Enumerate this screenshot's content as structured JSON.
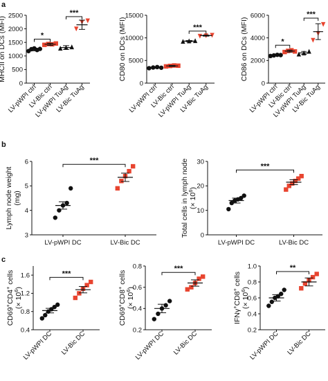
{
  "panel_labels": [
    "a",
    "b",
    "c"
  ],
  "colors": {
    "ctrl": "#111111",
    "bic": "#e8442f",
    "axis": "#111111"
  },
  "chart_data": [
    {
      "id": "a1",
      "panel": "a",
      "type": "scatter",
      "ylabel": "MHCII on DCs (MFI)",
      "categories": [
        "LV-pWPI ctrl",
        "LV-Bic ctrl",
        "LV-pWPI TuAg",
        "LV-Bic TuAg"
      ],
      "ylim": [
        0,
        2500
      ],
      "yticks": [
        0,
        500,
        1000,
        1500,
        2000,
        2500
      ],
      "yticklabels": [
        "0",
        "500",
        "1000",
        "1500",
        "2000",
        "2500"
      ],
      "groups": [
        {
          "color": "black",
          "marker": "circle",
          "points": [
            1180,
            1250,
            1280,
            1220,
            1260
          ],
          "mean": 1240,
          "sem": 50
        },
        {
          "color": "red",
          "marker": "square",
          "points": [
            1410,
            1440,
            1430,
            1460
          ],
          "mean": 1430,
          "sem": 40
        },
        {
          "color": "black",
          "marker": "triangle",
          "points": [
            1280,
            1310,
            1330
          ],
          "mean": 1310,
          "sem": 70
        },
        {
          "color": "red",
          "marker": "triangle-down",
          "points": [
            2000,
            2250,
            2300
          ],
          "mean": 2150,
          "sem": 170
        }
      ],
      "brackets": [
        {
          "from": 0,
          "to": 1,
          "y": 1620,
          "label": "*"
        },
        {
          "from": 2,
          "to": 3,
          "y": 2450,
          "label": "***"
        }
      ]
    },
    {
      "id": "a2",
      "panel": "a",
      "type": "scatter",
      "ylabel": "CD80 on DCs (MFI)",
      "categories": [
        "LV-pWPI ctrl",
        "LV-Bic ctrl",
        "LV-pWPI TuAg",
        "LV-Bic TuAg"
      ],
      "ylim": [
        0,
        15000
      ],
      "yticks": [
        0,
        5000,
        10000,
        15000
      ],
      "yticklabels": [
        "0",
        "5000",
        "10000",
        "15000"
      ],
      "groups": [
        {
          "color": "black",
          "marker": "circle",
          "points": [
            3300,
            3450,
            3550,
            3400
          ],
          "mean": 3420,
          "sem": 150
        },
        {
          "color": "red",
          "marker": "square",
          "points": [
            3700,
            3800,
            3900,
            3850
          ],
          "mean": 3800,
          "sem": 120
        },
        {
          "color": "black",
          "marker": "triangle",
          "points": [
            9200,
            9300,
            9350
          ],
          "mean": 9280,
          "sem": 130
        },
        {
          "color": "red",
          "marker": "triangle-down",
          "points": [
            10400,
            10500,
            10600
          ],
          "mean": 10500,
          "sem": 120
        }
      ],
      "brackets": [
        {
          "from": 2,
          "to": 3,
          "y": 11500,
          "label": "***"
        }
      ]
    },
    {
      "id": "a3",
      "panel": "a",
      "type": "scatter",
      "ylabel": "CD86 on DCs (MFI)",
      "categories": [
        "LV-pWPI ctrl",
        "LV-Bic ctrl",
        "LV-pWPI TuAg",
        "LV-Bic TuAg"
      ],
      "ylim": [
        0,
        6000
      ],
      "yticks": [
        0,
        2000,
        4000,
        6000
      ],
      "yticklabels": [
        "0",
        "2000",
        "4000",
        "6000"
      ],
      "groups": [
        {
          "color": "black",
          "marker": "circle",
          "points": [
            2400,
            2450,
            2500,
            2480
          ],
          "mean": 2460,
          "sem": 60
        },
        {
          "color": "red",
          "marker": "square",
          "points": [
            2750,
            2850,
            2900,
            2800
          ],
          "mean": 2830,
          "sem": 90
        },
        {
          "color": "black",
          "marker": "triangle",
          "points": [
            2550,
            2650,
            2800
          ],
          "mean": 2670,
          "sem": 130
        },
        {
          "color": "red",
          "marker": "triangle-down",
          "points": [
            3800,
            4400,
            5200
          ],
          "mean": 4550,
          "sem": 700
        }
      ],
      "brackets": [
        {
          "from": 0,
          "to": 1,
          "y": 3350,
          "label": "*"
        },
        {
          "from": 2,
          "to": 3,
          "y": 5750,
          "label": "***"
        }
      ]
    },
    {
      "id": "b1",
      "panel": "b",
      "type": "scatter",
      "ylabel": "Lymph node weight",
      "yunit": "(mg)",
      "categories": [
        "LV-pWPI DC",
        "LV-Bic DC"
      ],
      "ylim": [
        3,
        6
      ],
      "yticks": [
        3,
        4,
        5,
        6
      ],
      "yticklabels": [
        "3",
        "4",
        "5",
        "6"
      ],
      "groups": [
        {
          "color": "black",
          "marker": "circle",
          "points": [
            3.7,
            4.0,
            4.2,
            4.3,
            4.9
          ],
          "mean": 4.2,
          "sem": 0.15
        },
        {
          "color": "red",
          "marker": "square",
          "points": [
            4.9,
            5.2,
            5.4,
            5.6,
            5.8
          ],
          "mean": 5.35,
          "sem": 0.17
        }
      ],
      "brackets": [
        {
          "from": 0,
          "to": 1,
          "y": 5.88,
          "label": "***"
        }
      ]
    },
    {
      "id": "b2",
      "panel": "b",
      "type": "scatter",
      "ylabel": "Total cells in lymph node",
      "yunit": "(× 10",
      "yunit_sup": "6",
      "yunit_end": ")",
      "categories": [
        "LV-pWPI DC",
        "LV-Bic DC"
      ],
      "ylim": [
        0,
        30
      ],
      "yticks": [
        0,
        10,
        20,
        30
      ],
      "yticklabels": [
        "0",
        "10",
        "20",
        "30"
      ],
      "groups": [
        {
          "color": "black",
          "marker": "circle",
          "points": [
            10.5,
            13,
            14,
            14.5,
            15,
            16
          ],
          "mean": 14,
          "sem": 1
        },
        {
          "color": "red",
          "marker": "square",
          "points": [
            18.5,
            20,
            21,
            22,
            23,
            24
          ],
          "mean": 21.5,
          "sem": 1
        }
      ],
      "brackets": [
        {
          "from": 0,
          "to": 1,
          "y": 26.5,
          "label": "***"
        }
      ]
    },
    {
      "id": "c1",
      "panel": "c",
      "type": "scatter",
      "ylabel": "CD69",
      "ylabel_sup1": "+",
      "ylabel_mid": "CD4",
      "ylabel_sup2": "+",
      "ylabel_end": " cells",
      "yunit": "(× 10",
      "yunit_sup": "6",
      "yunit_end": ")",
      "categories": [
        "LV-pWPI DC",
        "LV-Bic DC"
      ],
      "ylim": [
        0.4,
        1.8
      ],
      "yticks": [
        0.4,
        0.8,
        1.2,
        1.6
      ],
      "yticklabels": [
        "0.4",
        "0.8",
        "1.2",
        "1.6"
      ],
      "groups": [
        {
          "color": "black",
          "marker": "circle",
          "points": [
            0.65,
            0.72,
            0.8,
            0.85,
            0.9,
            0.95
          ],
          "mean": 0.82,
          "sem": 0.05
        },
        {
          "color": "red",
          "marker": "square",
          "points": [
            1.1,
            1.2,
            1.3,
            1.38,
            1.45
          ],
          "mean": 1.28,
          "sem": 0.07
        }
      ],
      "brackets": [
        {
          "from": 0,
          "to": 1,
          "y": 1.55,
          "label": "***"
        }
      ]
    },
    {
      "id": "c2",
      "panel": "c",
      "type": "scatter",
      "ylabel": "CD69",
      "ylabel_sup1": "+",
      "ylabel_mid": "CD8",
      "ylabel_sup2": "+",
      "ylabel_end": " cells",
      "yunit": "(× 10",
      "yunit_sup": "6",
      "yunit_end": ")",
      "categories": [
        "LV-pWPI DC",
        "LV-Bic DC"
      ],
      "ylim": [
        0.2,
        0.8
      ],
      "yticks": [
        0.2,
        0.4,
        0.6,
        0.8
      ],
      "yticklabels": [
        "0.2",
        "0.4",
        "0.6",
        "0.8"
      ],
      "groups": [
        {
          "color": "black",
          "marker": "circle",
          "points": [
            0.3,
            0.35,
            0.4,
            0.43,
            0.47
          ],
          "mean": 0.4,
          "sem": 0.04
        },
        {
          "color": "red",
          "marker": "square",
          "points": [
            0.58,
            0.6,
            0.64,
            0.68,
            0.7
          ],
          "mean": 0.64,
          "sem": 0.03
        }
      ],
      "brackets": [
        {
          "from": 0,
          "to": 1,
          "y": 0.74,
          "label": "***"
        }
      ]
    },
    {
      "id": "c3",
      "panel": "c",
      "type": "scatter",
      "ylabel": "IFNγ",
      "ylabel_sup1": "+",
      "ylabel_mid": "CD8",
      "ylabel_sup2": "+",
      "ylabel_end": " cells",
      "yunit": "(× 10",
      "yunit_sup": "6",
      "yunit_end": ")",
      "categories": [
        "LV-pWPI DC",
        "LV-Bic DC"
      ],
      "ylim": [
        0.2,
        1.0
      ],
      "yticks": [
        0.2,
        0.4,
        0.6,
        0.8,
        1.0
      ],
      "yticklabels": [
        "0.2",
        "0.4",
        "0.6",
        "0.8",
        "1.0"
      ],
      "groups": [
        {
          "color": "black",
          "marker": "circle",
          "points": [
            0.5,
            0.55,
            0.6,
            0.62,
            0.65,
            0.7
          ],
          "mean": 0.6,
          "sem": 0.04
        },
        {
          "color": "red",
          "marker": "square",
          "points": [
            0.72,
            0.78,
            0.82,
            0.86,
            0.9
          ],
          "mean": 0.8,
          "sem": 0.05
        }
      ],
      "brackets": [
        {
          "from": 0,
          "to": 1,
          "y": 0.93,
          "label": "**"
        }
      ]
    }
  ]
}
